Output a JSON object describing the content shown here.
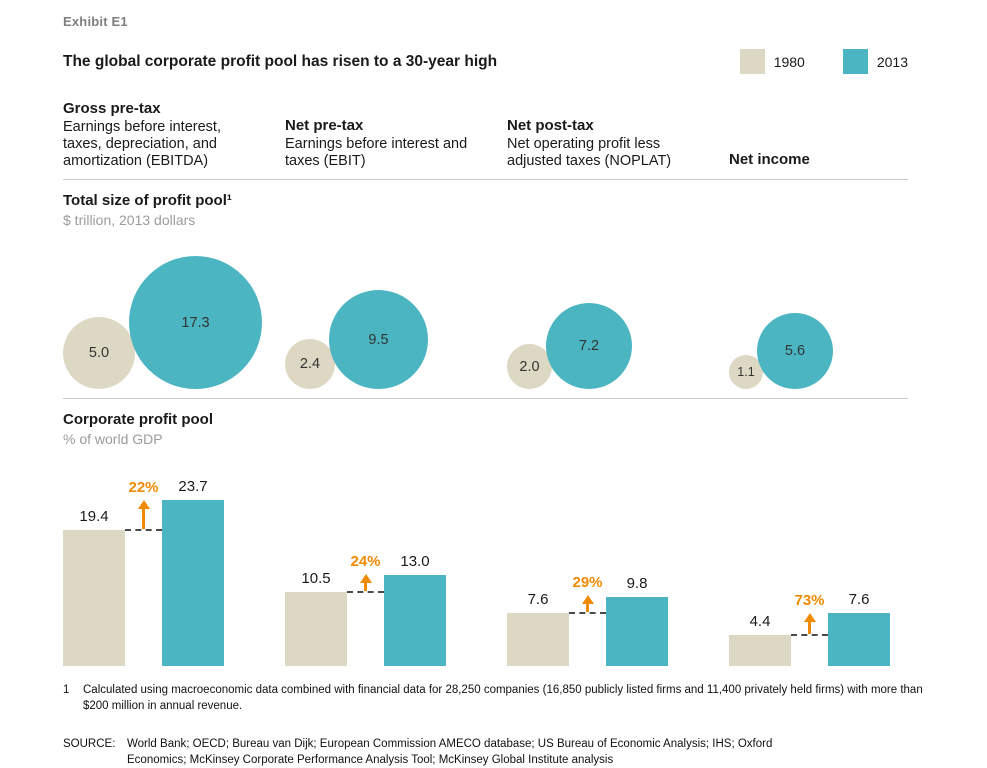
{
  "header": {
    "exhibit": "Exhibit E1",
    "title": "The global corporate profit pool has risen to a 30-year high"
  },
  "legend": {
    "items": [
      {
        "label": "1980",
        "color": "#ddd8c3"
      },
      {
        "label": "2013",
        "color": "#4bb5c1"
      }
    ]
  },
  "accent_orange": "#F08A00",
  "columns": [
    {
      "title": "Gross pre-tax",
      "description": "Earnings before interest, taxes, depreciation, and amortization (EBITDA)"
    },
    {
      "title": "Net pre-tax",
      "description": "Earnings before interest and taxes (EBIT)"
    },
    {
      "title": "Net post-tax",
      "description": "Net operating profit less adjusted taxes (NOPLAT)"
    },
    {
      "title": "Net income",
      "description": ""
    }
  ],
  "sections": {
    "bubbles": {
      "title": "Total size of profit pool¹",
      "subtitle": "$ trillion, 2013 dollars"
    },
    "bars": {
      "title": "Corporate profit pool",
      "subtitle": "% of world GDP"
    }
  },
  "chart_data": [
    {
      "type": "bubble",
      "title": "Total size of profit pool",
      "unit": "$ trillion, 2013 dollars",
      "categories": [
        "Gross pre-tax (EBITDA)",
        "Net pre-tax (EBIT)",
        "Net post-tax (NOPLAT)",
        "Net income"
      ],
      "series": [
        {
          "name": "1980",
          "values": [
            5.0,
            2.4,
            2.0,
            1.1
          ],
          "color": "#ddd8c3"
        },
        {
          "name": "2013",
          "values": [
            17.3,
            9.5,
            7.2,
            5.6
          ],
          "color": "#4bb5c1"
        }
      ],
      "layout": "area-proportional circles, bottom-aligned pairs, value labels inside circles"
    },
    {
      "type": "bar",
      "title": "Corporate profit pool",
      "unit": "% of world GDP",
      "categories": [
        "Gross pre-tax (EBITDA)",
        "Net pre-tax (EBIT)",
        "Net post-tax (NOPLAT)",
        "Net income"
      ],
      "series": [
        {
          "name": "1980",
          "values": [
            19.4,
            10.5,
            7.6,
            4.4
          ],
          "color": "#ddd8c3"
        },
        {
          "name": "2013",
          "values": [
            23.7,
            13.0,
            9.8,
            7.6
          ],
          "color": "#4bb5c1"
        }
      ],
      "change_labels": [
        "22%",
        "24%",
        "29%",
        "73%"
      ],
      "layout": "paired bars, value labels above bars, dashed connector from 1980 bar top with orange up-arrow and orange percent-change label"
    }
  ],
  "footnote": {
    "marker": "1",
    "text": "Calculated using macroeconomic data combined with financial data for 28,250 companies (16,850 publicly listed firms and 11,400 privately held firms) with more than $200 million in annual revenue."
  },
  "source": {
    "label": "SOURCE:",
    "text": "World Bank; OECD; Bureau van Dijk; European Commission AMECO database; US Bureau of Economic Analysis; IHS; Oxford Economics; McKinsey Corporate Performance Analysis Tool; McKinsey Global Institute analysis"
  }
}
